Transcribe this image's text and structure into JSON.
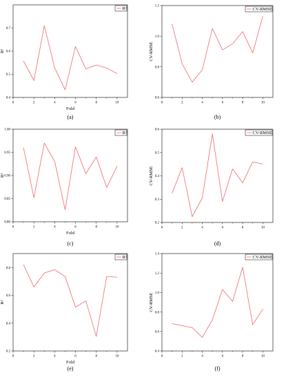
{
  "colors": {
    "series": "#f4767a",
    "axis": "#000000",
    "legend_border": "#000000"
  },
  "chart_data": [
    {
      "type": "line",
      "panel_label": "(a)",
      "xlabel": "Fold",
      "ylabel": "R²",
      "xlim": [
        0,
        11
      ],
      "ylim": [
        0.4,
        0.8
      ],
      "xticks": [
        0,
        2,
        4,
        6,
        8,
        10
      ],
      "yticks": [
        0.4,
        0.5,
        0.6,
        0.7
      ],
      "ytick_labels": [
        "0.4",
        "0.5",
        "0.6",
        "0.7"
      ],
      "legend": "top-right",
      "series": [
        {
          "name": "R²",
          "x": [
            1,
            2,
            3,
            4,
            5,
            6,
            7,
            8,
            9,
            10
          ],
          "values": [
            0.557,
            0.473,
            0.71,
            0.527,
            0.433,
            0.62,
            0.523,
            0.54,
            0.527,
            0.503
          ]
        }
      ]
    },
    {
      "type": "line",
      "panel_label": "(b)",
      "xlabel": "",
      "ylabel": "CV-RMSE",
      "xlim": [
        0,
        11
      ],
      "ylim": [
        0.6,
        1.2
      ],
      "xticks": [
        0,
        2,
        4,
        6,
        8,
        10
      ],
      "yticks": [
        0.6,
        0.8,
        1.0,
        1.2
      ],
      "ytick_labels": [
        "0.6",
        "0.8",
        "1.0",
        "1.2"
      ],
      "legend": "top-right",
      "series": [
        {
          "name": "CV-RMSE",
          "x": [
            1,
            2,
            3,
            4,
            5,
            6,
            7,
            8,
            9,
            10
          ],
          "values": [
            1.08,
            0.82,
            0.7,
            0.78,
            1.05,
            0.91,
            0.95,
            1.03,
            0.89,
            1.13
          ]
        }
      ]
    },
    {
      "type": "line",
      "panel_label": "(c)",
      "xlabel": "Fold",
      "ylabel": "R²",
      "xlim": [
        0,
        11
      ],
      "ylim": [
        0.8,
        1.0
      ],
      "xticks": [
        0,
        2,
        4,
        6,
        8,
        10
      ],
      "yticks": [
        0.8,
        0.85,
        0.9,
        0.95,
        1.0
      ],
      "ytick_labels": [
        "0.80",
        "0.85",
        "0.90",
        "0.95",
        "1.00"
      ],
      "legend": "top-right",
      "series": [
        {
          "name": "R²",
          "x": [
            1,
            2,
            3,
            4,
            5,
            6,
            7,
            8,
            9,
            10
          ],
          "values": [
            0.96,
            0.852,
            0.97,
            0.93,
            0.826,
            0.962,
            0.904,
            0.94,
            0.874,
            0.92
          ]
        }
      ]
    },
    {
      "type": "line",
      "panel_label": "(d)",
      "xlabel": "",
      "ylabel": "CV-RMSE",
      "xlim": [
        0,
        11
      ],
      "ylim": [
        0.2,
        0.6
      ],
      "xticks": [
        0,
        2,
        4,
        6,
        8,
        10
      ],
      "yticks": [
        0.2,
        0.3,
        0.4,
        0.5,
        0.6
      ],
      "ytick_labels": [
        "0.2",
        "0.3",
        "0.4",
        "0.5",
        "0.6"
      ],
      "legend": "top-right",
      "series": [
        {
          "name": "CV-RMSE",
          "x": [
            1,
            2,
            3,
            4,
            5,
            6,
            7,
            8,
            9,
            10
          ],
          "values": [
            0.325,
            0.435,
            0.225,
            0.305,
            0.58,
            0.29,
            0.43,
            0.37,
            0.46,
            0.45
          ]
        }
      ]
    },
    {
      "type": "line",
      "panel_label": "(e)",
      "xlabel": "Fold",
      "ylabel": "R²",
      "xlim": [
        0,
        11
      ],
      "ylim": [
        0.2,
        0.9
      ],
      "xticks": [
        0,
        2,
        4,
        6,
        8,
        10
      ],
      "yticks": [
        0.2,
        0.4,
        0.6,
        0.8
      ],
      "ytick_labels": [
        "0.2",
        "0.4",
        "0.6",
        "0.8"
      ],
      "legend": "top-right",
      "series": [
        {
          "name": "R²",
          "x": [
            1,
            2,
            3,
            4,
            5,
            6,
            7,
            8,
            9,
            10
          ],
          "values": [
            0.82,
            0.66,
            0.76,
            0.785,
            0.735,
            0.515,
            0.56,
            0.305,
            0.735,
            0.73
          ]
        }
      ]
    },
    {
      "type": "line",
      "panel_label": "(f)",
      "xlabel": "",
      "ylabel": "CV-RMSE",
      "xlim": [
        0,
        11
      ],
      "ylim": [
        0.4,
        1.4
      ],
      "xticks": [
        0,
        2,
        4,
        6,
        8,
        10
      ],
      "yticks": [
        0.4,
        0.6,
        0.8,
        1.0,
        1.2,
        1.4
      ],
      "ytick_labels": [
        "0.4",
        "0.6",
        "0.8",
        "1.0",
        "1.2",
        "1.4"
      ],
      "legend": "top-right",
      "series": [
        {
          "name": "CV-RMSE",
          "x": [
            1,
            2,
            3,
            4,
            5,
            6,
            7,
            8,
            9,
            10
          ],
          "values": [
            0.68,
            0.66,
            0.64,
            0.54,
            0.72,
            1.03,
            0.91,
            1.26,
            0.67,
            0.83
          ]
        }
      ]
    }
  ]
}
